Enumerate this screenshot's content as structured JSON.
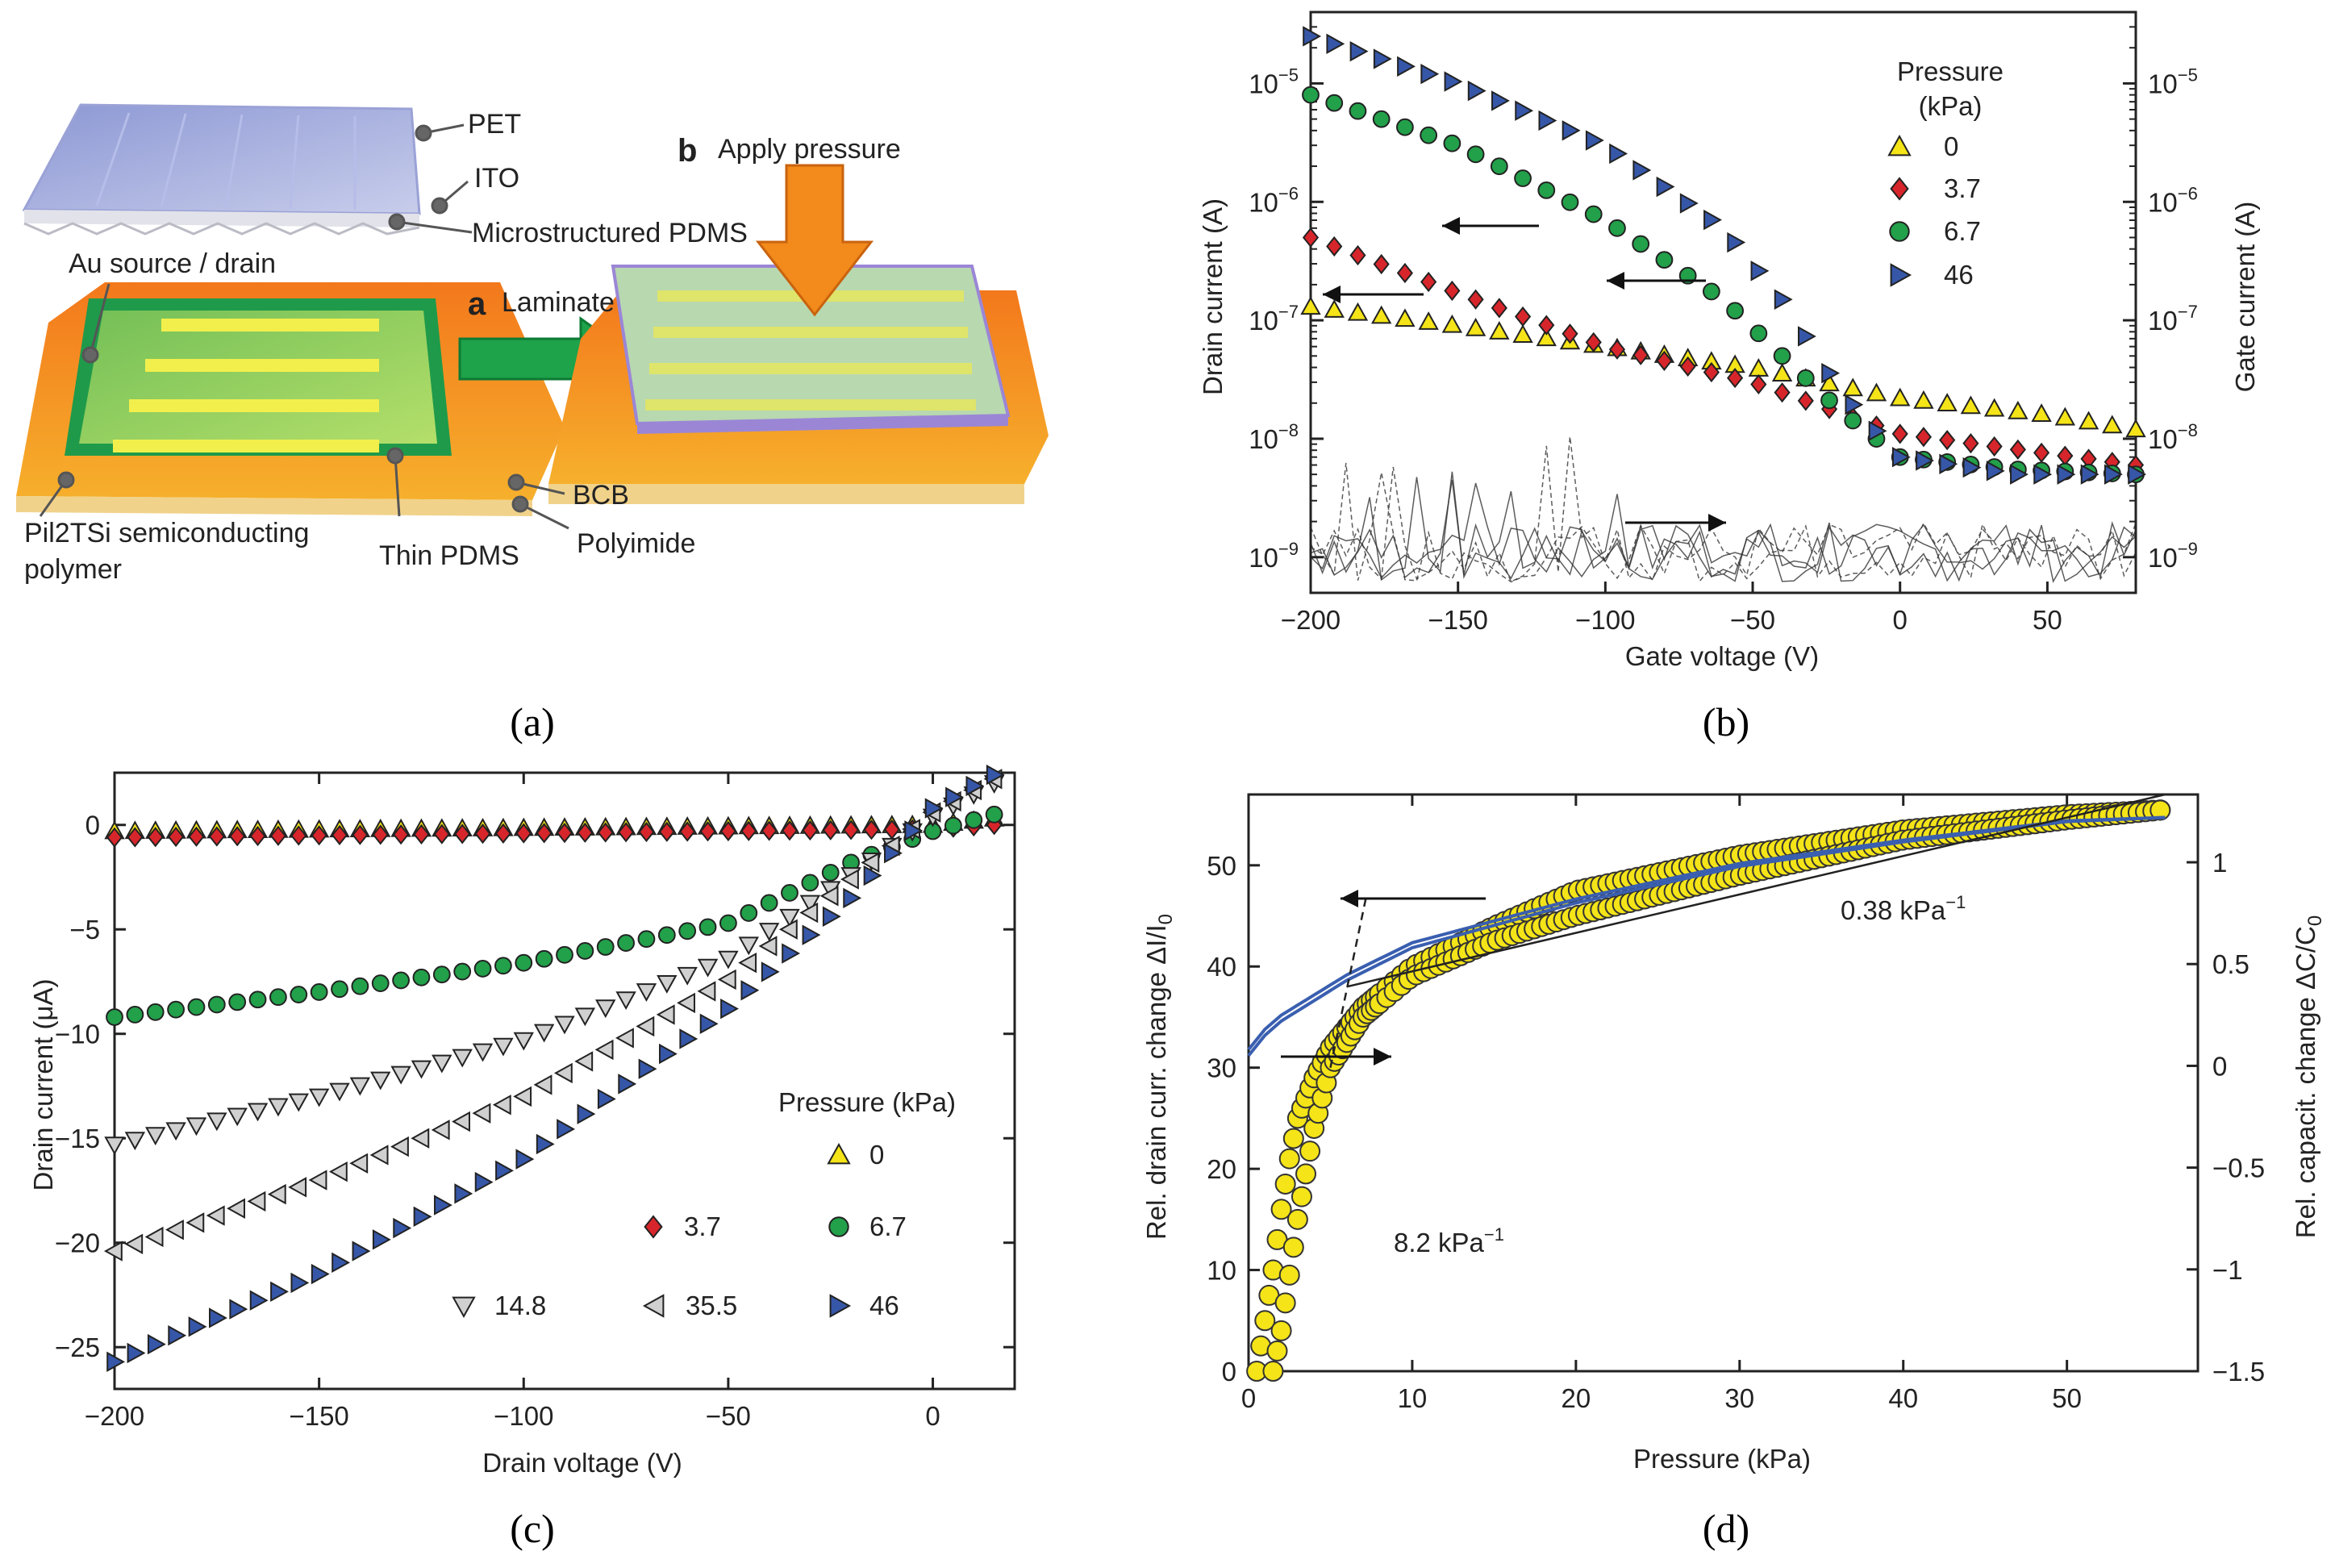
{
  "colors": {
    "yellow": "#f4e418",
    "red": "#d7262b",
    "green": "#22a04a",
    "blue": "#3657a8",
    "grey": "#d0d0d0",
    "blue_line": "#3a5fb0",
    "orange": "#f08a1c",
    "orange_dark": "#e0551a"
  },
  "panels": {
    "a": {
      "caption": "(a)",
      "labels": {
        "pet": "PET",
        "ito": "ITO",
        "microstructured_pdms": "Microstructured PDMS",
        "au_source_drain": "Au source / drain",
        "step_a": "a",
        "laminate": "Laminate",
        "step_b": "b",
        "apply_pressure": "Apply pressure",
        "bcb": "BCB",
        "polyimide": "Polyimide",
        "thin_pdms": "Thin PDMS",
        "semiconducting_polymer_1": "Pil2TSi semiconducting",
        "semiconducting_polymer_2": "polymer"
      }
    },
    "b": {
      "caption": "(b)"
    },
    "c": {
      "caption": "(c)"
    },
    "d": {
      "caption": "(d)"
    }
  },
  "chart_data": [
    {
      "id": "b",
      "type": "scatter",
      "xlabel": "Gate voltage (V)",
      "ylabel": "Drain current (A)",
      "y2label": "Gate current (A)",
      "yscale": "log",
      "xlim": [
        -200,
        80
      ],
      "ylim": [
        5e-10,
        4e-05
      ],
      "xticks": [
        -200,
        -150,
        -100,
        -50,
        0,
        50
      ],
      "yticks": [
        {
          "v": 1e-09,
          "exp": "−9"
        },
        {
          "v": 1e-08,
          "exp": "−8"
        },
        {
          "v": 1e-07,
          "exp": "−7"
        },
        {
          "v": 1e-06,
          "exp": "−6"
        },
        {
          "v": 1e-05,
          "exp": "−5"
        }
      ],
      "tick_base": "10",
      "legend_title": [
        "Pressure",
        "(kPa)"
      ],
      "series": [
        {
          "name": "0",
          "marker": "triangle-up",
          "color": "#f4e418",
          "anchors": [
            [
              -200,
              1.3e-07
            ],
            [
              -150,
              9e-08
            ],
            [
              -100,
              6e-08
            ],
            [
              -50,
              4e-08
            ],
            [
              0,
              2.2e-08
            ],
            [
              50,
              1.6e-08
            ],
            [
              80,
              1.2e-08
            ]
          ]
        },
        {
          "name": "3.7",
          "marker": "diamond",
          "color": "#d7262b",
          "anchors": [
            [
              -200,
              5e-07
            ],
            [
              -150,
              1.7e-07
            ],
            [
              -100,
              6e-08
            ],
            [
              -50,
              3e-08
            ],
            [
              0,
              1.1e-08
            ],
            [
              50,
              7.5e-09
            ],
            [
              80,
              6e-09
            ]
          ]
        },
        {
          "name": "6.7",
          "marker": "circle",
          "color": "#22a04a",
          "anchors": [
            [
              -200,
              8e-06
            ],
            [
              -150,
              3e-06
            ],
            [
              -100,
              7e-07
            ],
            [
              -60,
              1.5e-07
            ],
            [
              -40,
              5e-08
            ],
            [
              -20,
              1.7e-08
            ],
            [
              0,
              7e-09
            ],
            [
              40,
              5.5e-09
            ],
            [
              80,
              5e-09
            ]
          ]
        },
        {
          "name": "46",
          "marker": "triangle-right",
          "color": "#3657a8",
          "anchors": [
            [
              -200,
              2.5e-05
            ],
            [
              -150,
              1e-05
            ],
            [
              -100,
              3e-06
            ],
            [
              -60,
              6e-07
            ],
            [
              -40,
              1.5e-07
            ],
            [
              -20,
              2.5e-08
            ],
            [
              0,
              7e-09
            ],
            [
              40,
              5e-09
            ],
            [
              80,
              5e-09
            ]
          ]
        }
      ]
    },
    {
      "id": "c",
      "type": "scatter",
      "xlabel": "Drain voltage (V)",
      "ylabel": "Drain current (μA)",
      "xlim": [
        -200,
        20
      ],
      "ylim": [
        -27,
        2.5
      ],
      "xticks": [
        -200,
        -150,
        -100,
        -50,
        0
      ],
      "yticks": [
        0,
        -5,
        -10,
        -15,
        -20,
        -25
      ],
      "legend_title": "Pressure (kPa)",
      "series": [
        {
          "name": "0",
          "marker": "triangle-up",
          "color": "#f4e418",
          "anchors": [
            [
              -200,
              -0.3
            ],
            [
              0,
              0
            ],
            [
              15,
              0.3
            ]
          ]
        },
        {
          "name": "3.7",
          "marker": "diamond",
          "color": "#d7262b",
          "anchors": [
            [
              -200,
              -0.6
            ],
            [
              0,
              -0.2
            ],
            [
              15,
              0.0
            ]
          ]
        },
        {
          "name": "6.7",
          "marker": "circle",
          "color": "#22a04a",
          "anchors": [
            [
              -200,
              -9.2
            ],
            [
              -150,
              -8.0
            ],
            [
              -100,
              -6.6
            ],
            [
              -50,
              -4.7
            ],
            [
              -20,
              -1.8
            ],
            [
              0,
              -0.3
            ],
            [
              15,
              0.5
            ]
          ]
        },
        {
          "name": "14.8",
          "marker": "triangle-down",
          "color": "#d0d0d0",
          "anchors": [
            [
              -200,
              -15.3
            ],
            [
              -150,
              -13.0
            ],
            [
              -100,
              -10.3
            ],
            [
              -50,
              -6.4
            ],
            [
              -20,
              -2.4
            ],
            [
              0,
              0.4
            ],
            [
              15,
              2.0
            ]
          ]
        },
        {
          "name": "35.5",
          "marker": "triangle-left",
          "color": "#d0d0d0",
          "anchors": [
            [
              -200,
              -20.4
            ],
            [
              -150,
              -17.0
            ],
            [
              -100,
              -13.0
            ],
            [
              -50,
              -7.4
            ],
            [
              -20,
              -2.6
            ],
            [
              0,
              0.6
            ],
            [
              15,
              2.2
            ]
          ]
        },
        {
          "name": "46",
          "marker": "triangle-right",
          "color": "#3657a8",
          "anchors": [
            [
              -200,
              -25.7
            ],
            [
              -150,
              -21.5
            ],
            [
              -100,
              -16.0
            ],
            [
              -50,
              -8.8
            ],
            [
              -20,
              -3.5
            ],
            [
              0,
              0.8
            ],
            [
              15,
              2.4
            ]
          ]
        }
      ]
    },
    {
      "id": "d",
      "type": "scatter",
      "xlabel": "Pressure (kPa)",
      "ylabel": "Rel. drain curr. change ΔI/I",
      "ylabel_sub": "0",
      "y2label": "Rel. capacit. change ΔC/C",
      "y2label_sub": "0",
      "xlim": [
        0,
        58
      ],
      "ylim": [
        0,
        57
      ],
      "y2lim": [
        -1.5,
        1.333
      ],
      "xticks": [
        0,
        10,
        20,
        30,
        40,
        50
      ],
      "yticks": [
        0,
        10,
        20,
        30,
        40,
        50
      ],
      "y2ticks": [
        {
          "v": 1,
          "label": "1"
        },
        {
          "v": 0.5,
          "label": "0.5"
        },
        {
          "v": 0,
          "label": "0"
        },
        {
          "v": -0.5,
          "label": "−0.5"
        },
        {
          "v": -1,
          "label": "−1"
        },
        {
          "v": -1.5,
          "label": "−1.5"
        }
      ],
      "annotations": {
        "high": "0.38 kPa",
        "low": "8.2 kPa",
        "unit_sup": "−1"
      },
      "drain_change_loading": [
        [
          0.5,
          0
        ],
        [
          1,
          5
        ],
        [
          1.5,
          10
        ],
        [
          2,
          16
        ],
        [
          2.5,
          21
        ],
        [
          3,
          25
        ],
        [
          4,
          29
        ],
        [
          5,
          32
        ],
        [
          7,
          36
        ],
        [
          10,
          40
        ],
        [
          15,
          44
        ],
        [
          20,
          47.5
        ],
        [
          30,
          51
        ],
        [
          40,
          53.5
        ],
        [
          50,
          55
        ],
        [
          56,
          55.5
        ]
      ],
      "drain_change_unloading": [
        [
          56,
          55.5
        ],
        [
          50,
          54.5
        ],
        [
          40,
          52.5
        ],
        [
          30,
          49
        ],
        [
          20,
          45
        ],
        [
          15,
          42.5
        ],
        [
          10,
          39
        ],
        [
          7,
          35
        ],
        [
          5,
          30
        ],
        [
          4,
          24
        ],
        [
          3,
          15
        ],
        [
          2,
          4
        ],
        [
          1.5,
          0
        ]
      ],
      "capacitance_change": [
        [
          0,
          0.05
        ],
        [
          1,
          0.15
        ],
        [
          2,
          0.22
        ],
        [
          4,
          0.32
        ],
        [
          6,
          0.42
        ],
        [
          10,
          0.58
        ],
        [
          20,
          0.8
        ],
        [
          30,
          0.98
        ],
        [
          40,
          1.1
        ],
        [
          50,
          1.2
        ],
        [
          56,
          1.22
        ]
      ]
    }
  ]
}
